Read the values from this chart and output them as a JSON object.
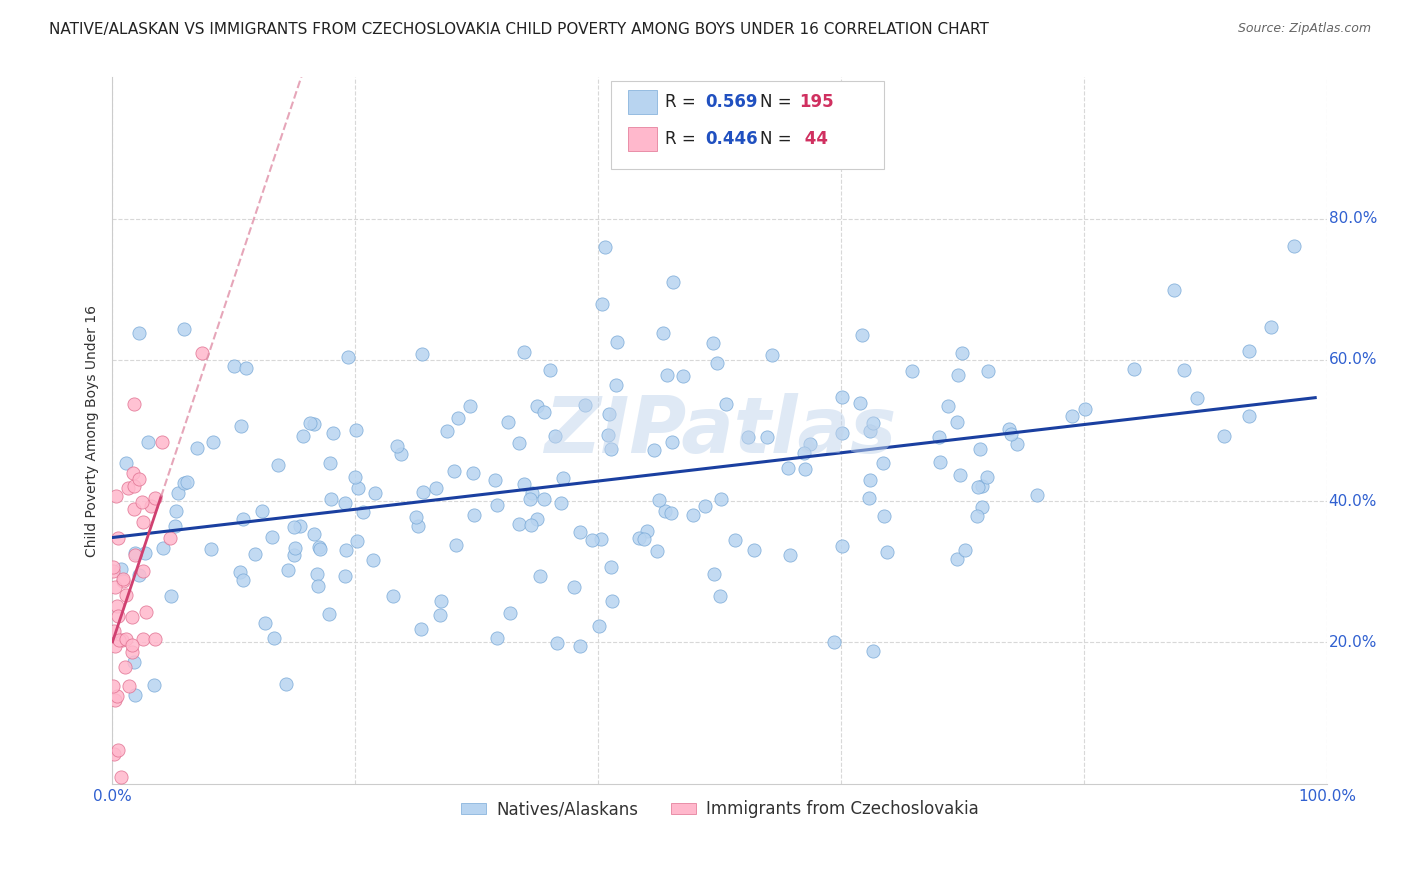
{
  "title": "NATIVE/ALASKAN VS IMMIGRANTS FROM CZECHOSLOVAKIA CHILD POVERTY AMONG BOYS UNDER 16 CORRELATION CHART",
  "source": "Source: ZipAtlas.com",
  "ylabel": "Child Poverty Among Boys Under 16",
  "blue_R": 0.569,
  "blue_N": 195,
  "pink_R": 0.446,
  "pink_N": 44,
  "blue_color": "#b8d4f0",
  "blue_edge_color": "#7aaad8",
  "blue_line_color": "#1a3fa0",
  "pink_color": "#ffb8cc",
  "pink_edge_color": "#e07090",
  "pink_line_color": "#d04070",
  "pink_dash_color": "#e090a8",
  "watermark": "ZIPatlas",
  "legend_R_color": "#2050c0",
  "legend_N_color": "#d03060",
  "ytick_color": "#3060d0",
  "xtick_color": "#3060d0",
  "bg_color": "#ffffff",
  "grid_color": "#d8d8d8",
  "title_fontsize": 11,
  "axis_label_fontsize": 10,
  "tick_fontsize": 11
}
